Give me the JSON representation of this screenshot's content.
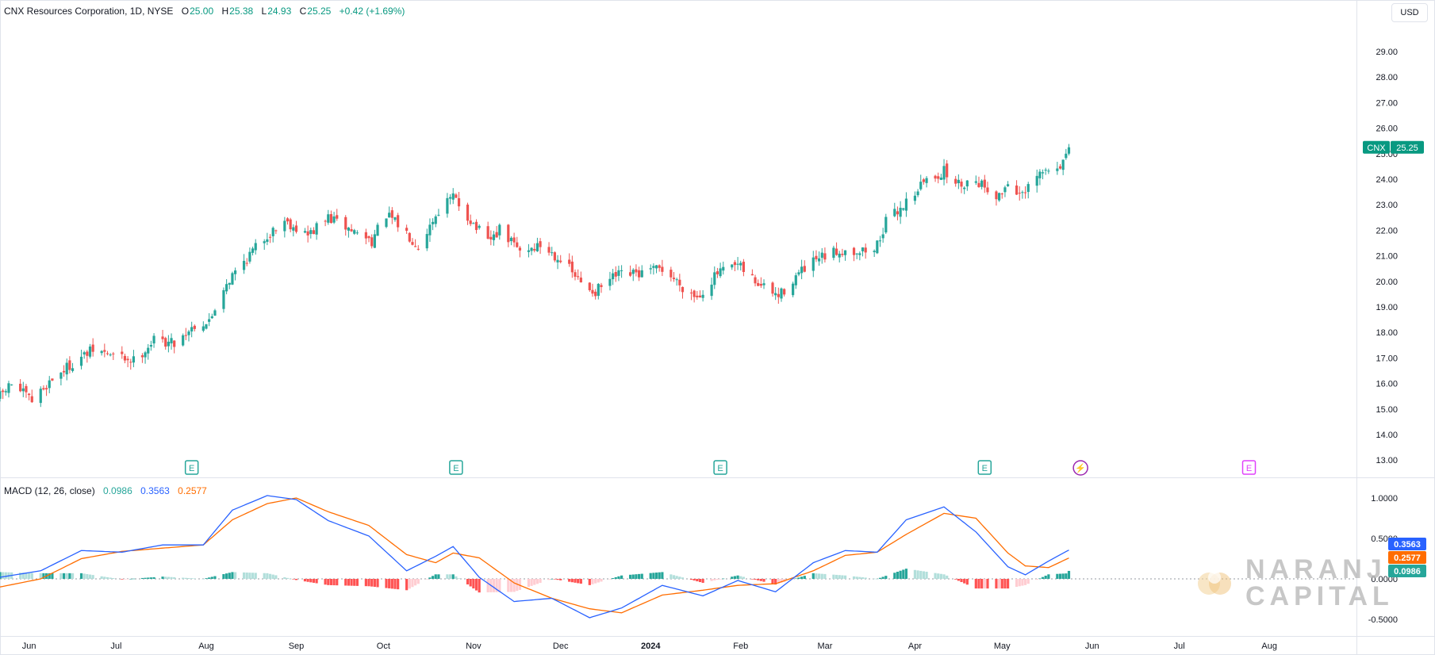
{
  "header": {
    "symbol_name": "CNX Resources Corporation",
    "interval": "1D",
    "exchange": "NYSE",
    "open_label": "O",
    "open": "25.00",
    "high_label": "H",
    "high": "25.38",
    "low_label": "L",
    "low": "24.93",
    "close_label": "C",
    "close": "25.25",
    "change": "+0.42 (+1.69%)",
    "currency": "USD"
  },
  "macd_legend": {
    "title": "MACD (12, 26, close)",
    "histogram": "0.0986",
    "macd": "0.3563",
    "signal": "0.2577"
  },
  "price_badge": {
    "ticker": "CNX",
    "value": "25.25"
  },
  "macd_badges": {
    "macd": "0.3563",
    "signal": "0.2577",
    "histogram": "0.0986"
  },
  "watermark": {
    "line1": "NARANJ",
    "line2": "CAPITAL"
  },
  "colors": {
    "up": "#26a69a",
    "down": "#ef5350",
    "macd_line": "#2962ff",
    "signal_line": "#ff6d00",
    "hist_up_strong": "#26a69a",
    "hist_up_weak": "#b2dfdb",
    "hist_down_strong": "#ff5252",
    "hist_down_weak": "#ffcdd2",
    "earnings_marker": "#26a69a",
    "dividend_marker": "#9c27b0",
    "future_earnings_marker": "#e040fb",
    "axis_text": "#131722",
    "grid_line": "#e0e3eb",
    "last_price_badge": "#089981"
  },
  "chart_data": [
    {
      "type": "candlestick",
      "name": "CNX",
      "title": "CNX Resources Corporation, 1D, NYSE",
      "y_axis_position": "right",
      "ylim": [
        12.5,
        29.6
      ],
      "yticks": [
        "13.00",
        "14.00",
        "15.00",
        "16.00",
        "17.00",
        "18.00",
        "19.00",
        "20.00",
        "21.00",
        "22.00",
        "23.00",
        "24.00",
        "25.00",
        "26.00",
        "27.00",
        "28.00",
        "29.00"
      ],
      "x_range": [
        "2023-05-22",
        "2024-08-31"
      ],
      "xticks": [
        {
          "date": "2023-06-01",
          "label": "Jun"
        },
        {
          "date": "2023-07-01",
          "label": "Jul"
        },
        {
          "date": "2023-08-01",
          "label": "Aug"
        },
        {
          "date": "2023-09-01",
          "label": "Sep"
        },
        {
          "date": "2023-10-01",
          "label": "Oct"
        },
        {
          "date": "2023-11-01",
          "label": "Nov"
        },
        {
          "date": "2023-12-01",
          "label": "Dec"
        },
        {
          "date": "2024-01-01",
          "label": "2024"
        },
        {
          "date": "2024-02-01",
          "label": "Feb"
        },
        {
          "date": "2024-03-01",
          "label": "Mar"
        },
        {
          "date": "2024-04-01",
          "label": "Apr"
        },
        {
          "date": "2024-05-01",
          "label": "May"
        },
        {
          "date": "2024-06-01",
          "label": "Jun"
        },
        {
          "date": "2024-07-01",
          "label": "Jul"
        },
        {
          "date": "2024-08-01",
          "label": "Aug"
        }
      ],
      "close_path_anchors": [
        [
          "2023-05-22",
          15.5
        ],
        [
          "2023-05-26",
          16.0
        ],
        [
          "2023-06-02",
          15.3
        ],
        [
          "2023-06-09",
          16.2
        ],
        [
          "2023-06-16",
          16.8
        ],
        [
          "2023-06-23",
          17.3
        ],
        [
          "2023-06-30",
          17.1
        ],
        [
          "2023-07-07",
          16.9
        ],
        [
          "2023-07-14",
          17.7
        ],
        [
          "2023-07-21",
          17.6
        ],
        [
          "2023-07-28",
          18.3
        ],
        [
          "2023-08-02",
          18.4
        ],
        [
          "2023-08-07",
          19.8
        ],
        [
          "2023-08-14",
          20.8
        ],
        [
          "2023-08-21",
          21.7
        ],
        [
          "2023-08-28",
          22.4
        ],
        [
          "2023-09-05",
          21.8
        ],
        [
          "2023-09-12",
          22.5
        ],
        [
          "2023-09-20",
          22.0
        ],
        [
          "2023-09-27",
          21.6
        ],
        [
          "2023-10-02",
          22.6
        ],
        [
          "2023-10-09",
          21.9
        ],
        [
          "2023-10-13",
          21.4
        ],
        [
          "2023-10-20",
          22.8
        ],
        [
          "2023-10-25",
          23.3
        ],
        [
          "2023-10-31",
          22.4
        ],
        [
          "2023-11-06",
          21.5
        ],
        [
          "2023-11-10",
          22.0
        ],
        [
          "2023-11-17",
          21.2
        ],
        [
          "2023-11-24",
          21.4
        ],
        [
          "2023-12-01",
          20.9
        ],
        [
          "2023-12-08",
          19.9
        ],
        [
          "2023-12-13",
          19.6
        ],
        [
          "2023-12-20",
          20.2
        ],
        [
          "2023-12-29",
          20.3
        ],
        [
          "2024-01-05",
          20.5
        ],
        [
          "2024-01-12",
          19.8
        ],
        [
          "2024-01-17",
          19.4
        ],
        [
          "2024-01-24",
          20.3
        ],
        [
          "2024-01-31",
          20.6
        ],
        [
          "2024-02-07",
          19.9
        ],
        [
          "2024-02-14",
          19.4
        ],
        [
          "2024-02-20",
          20.2
        ],
        [
          "2024-02-27",
          20.8
        ],
        [
          "2024-03-06",
          21.2
        ],
        [
          "2024-03-13",
          21.2
        ],
        [
          "2024-03-18",
          21.2
        ],
        [
          "2024-03-22",
          22.3
        ],
        [
          "2024-03-28",
          23.0
        ],
        [
          "2024-04-04",
          23.9
        ],
        [
          "2024-04-11",
          24.3
        ],
        [
          "2024-04-16",
          23.8
        ],
        [
          "2024-04-22",
          24.0
        ],
        [
          "2024-04-30",
          23.3
        ],
        [
          "2024-05-03",
          23.9
        ],
        [
          "2024-05-08",
          23.3
        ],
        [
          "2024-05-14",
          24.2
        ],
        [
          "2024-05-20",
          24.5
        ],
        [
          "2024-05-23",
          24.8
        ],
        [
          "2024-05-24",
          25.25
        ]
      ],
      "last_bar": {
        "date": "2024-05-24",
        "open": 25.0,
        "high": 25.38,
        "low": 24.93,
        "close": 25.25
      }
    },
    {
      "type": "line",
      "name": "MACD (12, 26, close)",
      "ylim": [
        -0.62,
        1.12
      ],
      "yticks": [
        "1.0000",
        "0.5000",
        "0.0000",
        "-0.5000"
      ],
      "series": [
        {
          "name": "MACD",
          "color": "#2962ff",
          "anchors": [
            [
              "2023-05-22",
              0.02
            ],
            [
              "2023-06-05",
              0.1
            ],
            [
              "2023-06-19",
              0.35
            ],
            [
              "2023-07-03",
              0.33
            ],
            [
              "2023-07-17",
              0.42
            ],
            [
              "2023-07-31",
              0.42
            ],
            [
              "2023-08-10",
              0.85
            ],
            [
              "2023-08-22",
              1.03
            ],
            [
              "2023-09-01",
              0.98
            ],
            [
              "2023-09-12",
              0.72
            ],
            [
              "2023-09-26",
              0.53
            ],
            [
              "2023-10-09",
              0.1
            ],
            [
              "2023-10-19",
              0.28
            ],
            [
              "2023-10-25",
              0.4
            ],
            [
              "2023-11-03",
              0.02
            ],
            [
              "2023-11-15",
              -0.28
            ],
            [
              "2023-11-28",
              -0.24
            ],
            [
              "2023-12-11",
              -0.48
            ],
            [
              "2023-12-22",
              -0.36
            ],
            [
              "2024-01-05",
              -0.08
            ],
            [
              "2024-01-19",
              -0.21
            ],
            [
              "2024-01-31",
              -0.02
            ],
            [
              "2024-02-13",
              -0.16
            ],
            [
              "2024-02-26",
              0.2
            ],
            [
              "2024-03-08",
              0.35
            ],
            [
              "2024-03-19",
              0.33
            ],
            [
              "2024-03-29",
              0.73
            ],
            [
              "2024-04-11",
              0.89
            ],
            [
              "2024-04-22",
              0.58
            ],
            [
              "2024-05-03",
              0.15
            ],
            [
              "2024-05-09",
              0.05
            ],
            [
              "2024-05-17",
              0.22
            ],
            [
              "2024-05-24",
              0.3563
            ]
          ]
        },
        {
          "name": "Signal",
          "color": "#ff6d00",
          "anchors": [
            [
              "2023-05-22",
              -0.1
            ],
            [
              "2023-06-05",
              0.0
            ],
            [
              "2023-06-19",
              0.25
            ],
            [
              "2023-07-03",
              0.34
            ],
            [
              "2023-07-17",
              0.38
            ],
            [
              "2023-07-31",
              0.42
            ],
            [
              "2023-08-10",
              0.73
            ],
            [
              "2023-08-22",
              0.93
            ],
            [
              "2023-09-01",
              1.0
            ],
            [
              "2023-09-12",
              0.83
            ],
            [
              "2023-09-26",
              0.66
            ],
            [
              "2023-10-09",
              0.3
            ],
            [
              "2023-10-19",
              0.2
            ],
            [
              "2023-10-25",
              0.32
            ],
            [
              "2023-11-03",
              0.26
            ],
            [
              "2023-11-15",
              -0.05
            ],
            [
              "2023-11-28",
              -0.24
            ],
            [
              "2023-12-11",
              -0.37
            ],
            [
              "2023-12-22",
              -0.42
            ],
            [
              "2024-01-05",
              -0.2
            ],
            [
              "2024-01-19",
              -0.14
            ],
            [
              "2024-01-31",
              -0.08
            ],
            [
              "2024-02-13",
              -0.06
            ],
            [
              "2024-02-26",
              0.1
            ],
            [
              "2024-03-08",
              0.29
            ],
            [
              "2024-03-19",
              0.33
            ],
            [
              "2024-03-29",
              0.55
            ],
            [
              "2024-04-11",
              0.81
            ],
            [
              "2024-04-22",
              0.75
            ],
            [
              "2024-05-03",
              0.32
            ],
            [
              "2024-05-09",
              0.16
            ],
            [
              "2024-05-17",
              0.14
            ],
            [
              "2024-05-24",
              0.2577
            ]
          ]
        }
      ],
      "histogram_name": "Histogram",
      "histogram_last": 0.0986
    }
  ],
  "event_markers": [
    {
      "type": "earnings",
      "date": "2023-07-27",
      "label": "E"
    },
    {
      "type": "earnings",
      "date": "2023-10-26",
      "label": "E"
    },
    {
      "type": "earnings",
      "date": "2024-01-25",
      "label": "E"
    },
    {
      "type": "earnings",
      "date": "2024-04-25",
      "label": "E"
    },
    {
      "type": "dividend",
      "date": "2024-05-28",
      "label": "⚡"
    },
    {
      "type": "earnings-upcoming",
      "date": "2024-07-25",
      "label": "E"
    }
  ]
}
